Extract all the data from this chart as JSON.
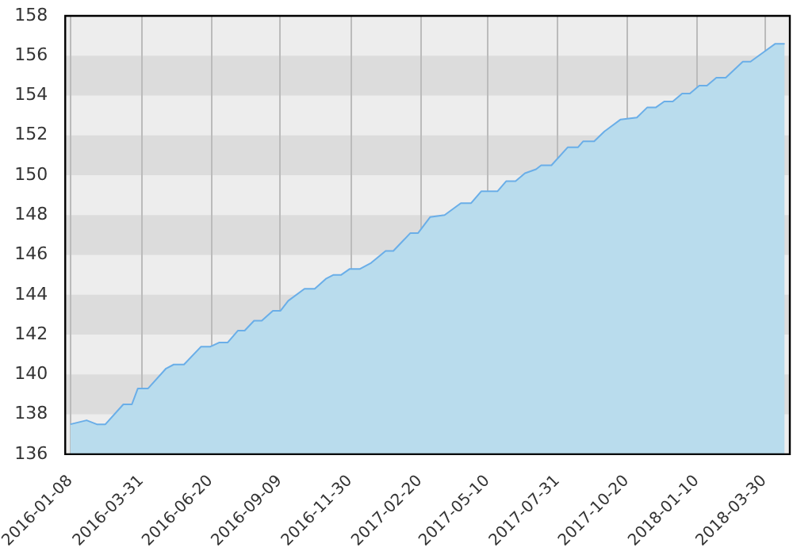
{
  "chart_data": {
    "type": "area",
    "x": [
      "2016-01-08",
      "2016-01-27",
      "2016-02-08",
      "2016-02-18",
      "2016-03-10",
      "2016-03-20",
      "2016-03-27",
      "2016-04-08",
      "2016-04-29",
      "2016-05-08",
      "2016-05-20",
      "2016-06-09",
      "2016-06-20",
      "2016-06-30",
      "2016-07-10",
      "2016-07-22",
      "2016-07-30",
      "2016-08-10",
      "2016-08-19",
      "2016-09-01",
      "2016-09-10",
      "2016-09-19",
      "2016-10-08",
      "2016-10-20",
      "2016-11-02",
      "2016-11-11",
      "2016-11-20",
      "2016-11-30",
      "2016-12-12",
      "2016-12-25",
      "2017-01-11",
      "2017-01-20",
      "2017-01-31",
      "2017-02-09",
      "2017-02-18",
      "2017-03-04",
      "2017-03-21",
      "2017-04-09",
      "2017-04-21",
      "2017-05-03",
      "2017-05-22",
      "2017-06-01",
      "2017-06-12",
      "2017-06-23",
      "2017-07-06",
      "2017-07-12",
      "2017-07-24",
      "2017-08-12",
      "2017-08-24",
      "2017-08-30",
      "2017-09-12",
      "2017-09-24",
      "2017-10-13",
      "2017-11-01",
      "2017-11-13",
      "2017-11-23",
      "2017-12-03",
      "2017-12-13",
      "2017-12-24",
      "2018-01-02",
      "2018-01-13",
      "2018-01-22",
      "2018-02-02",
      "2018-02-13",
      "2018-03-05",
      "2018-03-14",
      "2018-03-30",
      "2018-04-12",
      "2018-04-23"
    ],
    "series": [
      {
        "color": "#6aaee8",
        "values": [
          137.5,
          137.7,
          137.5,
          137.5,
          138.5,
          138.5,
          139.3,
          139.3,
          140.3,
          140.5,
          140.5,
          141.4,
          141.4,
          141.6,
          141.6,
          142.2,
          142.2,
          142.7,
          142.7,
          143.2,
          143.2,
          143.7,
          144.3,
          144.3,
          144.8,
          145.0,
          145.0,
          145.3,
          145.3,
          145.6,
          146.2,
          146.2,
          146.7,
          147.1,
          147.1,
          147.9,
          148.0,
          148.6,
          148.6,
          149.2,
          149.2,
          149.7,
          149.7,
          150.1,
          150.3,
          150.5,
          150.5,
          151.4,
          151.4,
          151.7,
          151.7,
          152.2,
          152.8,
          152.9,
          153.4,
          153.4,
          153.7,
          153.7,
          154.1,
          154.1,
          154.5,
          154.5,
          154.9,
          154.9,
          155.7,
          155.7,
          156.2,
          156.6,
          156.6
        ]
      }
    ],
    "xlim": [
      "2016-01-02",
      "2018-04-29"
    ],
    "xticks": [
      "2016-01-08",
      "2016-03-31",
      "2016-06-20",
      "2016-09-09",
      "2016-11-30",
      "2017-02-20",
      "2017-05-10",
      "2017-07-31",
      "2017-10-20",
      "2018-01-10",
      "2018-03-30"
    ],
    "ylim": [
      136,
      158
    ],
    "yticks": [
      136,
      138,
      140,
      142,
      144,
      146,
      148,
      150,
      152,
      154,
      156,
      158
    ],
    "grid": true,
    "legend": false
  }
}
